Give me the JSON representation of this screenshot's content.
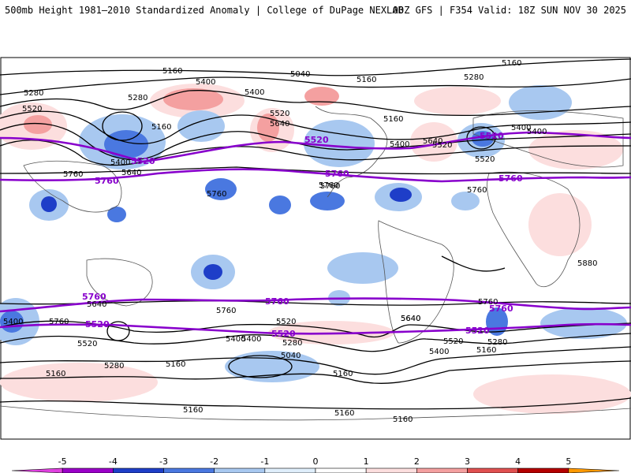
{
  "header": {
    "left": "500mb Height 1981–2010 Standardized Anomaly | College of DuPage NEXLAB",
    "right": "00Z GFS | F354 Valid: 18Z SUN NOV 30 2025"
  },
  "contour_labels": [
    {
      "text": "5160"
    },
    {
      "text": "5040"
    },
    {
      "text": "5160"
    },
    {
      "text": "5160"
    },
    {
      "text": "5280"
    },
    {
      "text": "5400"
    },
    {
      "text": "5400"
    },
    {
      "text": "5280"
    },
    {
      "text": "5280"
    },
    {
      "text": "5520"
    },
    {
      "text": "5520"
    },
    {
      "text": "5640"
    },
    {
      "text": "5160"
    },
    {
      "text": "5160"
    },
    {
      "text": "5400"
    },
    {
      "text": "5640"
    },
    {
      "text": "5400"
    },
    {
      "text": "5520"
    },
    {
      "text": "5520"
    },
    {
      "text": "5400"
    },
    {
      "text": "5400"
    },
    {
      "text": "5640"
    },
    {
      "text": "5760"
    },
    {
      "text": "5760"
    },
    {
      "text": "5760"
    },
    {
      "text": "5760"
    },
    {
      "text": "5880"
    },
    {
      "text": "5640"
    },
    {
      "text": "5760"
    },
    {
      "text": "5640"
    },
    {
      "text": "5400"
    },
    {
      "text": "5760"
    },
    {
      "text": "5520"
    },
    {
      "text": "5280"
    },
    {
      "text": "5400"
    },
    {
      "text": "5520"
    },
    {
      "text": "5040"
    },
    {
      "text": "5280"
    },
    {
      "text": "5160"
    },
    {
      "text": "5160"
    },
    {
      "text": "5160"
    },
    {
      "text": "5160"
    },
    {
      "text": "5160"
    },
    {
      "text": "5640"
    },
    {
      "text": "5760"
    },
    {
      "text": "5520"
    },
    {
      "text": "5280"
    },
    {
      "text": "5400"
    },
    {
      "text": "5160"
    },
    {
      "text": "5160"
    },
    {
      "text": "5400"
    },
    {
      "text": "5760"
    }
  ],
  "purple_labels": [
    {
      "text": "5520"
    },
    {
      "text": "5520"
    },
    {
      "text": "5520"
    },
    {
      "text": "5760"
    },
    {
      "text": "5760"
    },
    {
      "text": "5760"
    },
    {
      "text": "5760"
    },
    {
      "text": "5760"
    },
    {
      "text": "5760"
    },
    {
      "text": "5520"
    },
    {
      "text": "5520"
    },
    {
      "text": "5520"
    }
  ],
  "colorbar": {
    "ticks": [
      "-5",
      "-4",
      "-3",
      "-2",
      "-1",
      "0",
      "1",
      "2",
      "3",
      "4",
      "5"
    ],
    "colors": [
      "#e040e0",
      "#9a00c8",
      "#1e3ec8",
      "#4a78e0",
      "#a8c8f0",
      "#dfeefb",
      "#ffffff",
      "#fcdede",
      "#f4a0a0",
      "#e05050",
      "#b40000",
      "#ff9900"
    ]
  },
  "colors": {
    "contour": "#000000",
    "highlight_contour": "#8800cc",
    "neg_anom": "#a8c8f0",
    "neg_anom_strong": "#4a78e0",
    "pos_anom": "#fcdede",
    "pos_anom_strong": "#f4a0a0"
  }
}
